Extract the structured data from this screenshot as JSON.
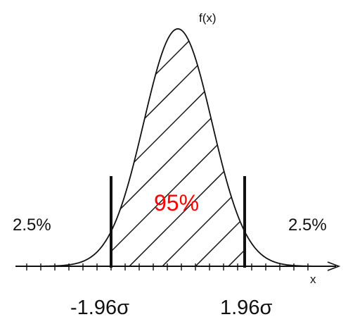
{
  "diagram": {
    "y_axis_label": "f(x)",
    "x_axis_label": "x",
    "left_tail_label": "2.5%",
    "right_tail_label": "2.5%",
    "center_label": "95%",
    "left_bound_label": "-1.96σ",
    "right_bound_label": "1.96σ",
    "colors": {
      "center_label": "#ff0000",
      "ink": "#111111",
      "background": "#ffffff"
    }
  }
}
